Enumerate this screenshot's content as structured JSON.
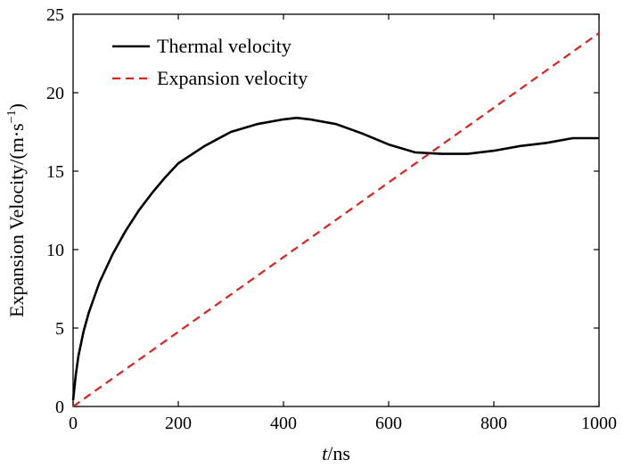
{
  "chart_data": {
    "type": "line",
    "xlabel_italic": "t",
    "xlabel_rest": "/ns",
    "ylabel_main": "Expansion Velocity/(m·s",
    "ylabel_sup": "−1",
    "ylabel_close": ")",
    "xlim": [
      0,
      1000
    ],
    "ylim": [
      0,
      25
    ],
    "xticks": [
      0,
      200,
      400,
      600,
      800,
      1000
    ],
    "yticks": [
      0,
      5,
      10,
      15,
      20,
      25
    ],
    "grid": false,
    "legend_position": "top-left",
    "series": [
      {
        "name": "Thermal velocity",
        "style": "solid",
        "color": "#000000",
        "x": [
          0,
          5,
          10,
          20,
          30,
          50,
          75,
          100,
          125,
          150,
          175,
          200,
          250,
          300,
          350,
          400,
          425,
          450,
          500,
          550,
          600,
          650,
          700,
          750,
          800,
          850,
          900,
          950,
          1000
        ],
        "y": [
          0.4,
          2.0,
          3.2,
          4.8,
          6.0,
          7.9,
          9.7,
          11.2,
          12.5,
          13.6,
          14.6,
          15.5,
          16.6,
          17.5,
          18.0,
          18.3,
          18.4,
          18.3,
          18.0,
          17.4,
          16.7,
          16.2,
          16.1,
          16.1,
          16.3,
          16.6,
          16.8,
          17.1,
          17.1
        ]
      },
      {
        "name": "Expansion velocity",
        "style": "dashed",
        "color": "#e02020",
        "x": [
          0,
          1000
        ],
        "y": [
          0,
          23.8
        ]
      }
    ]
  }
}
